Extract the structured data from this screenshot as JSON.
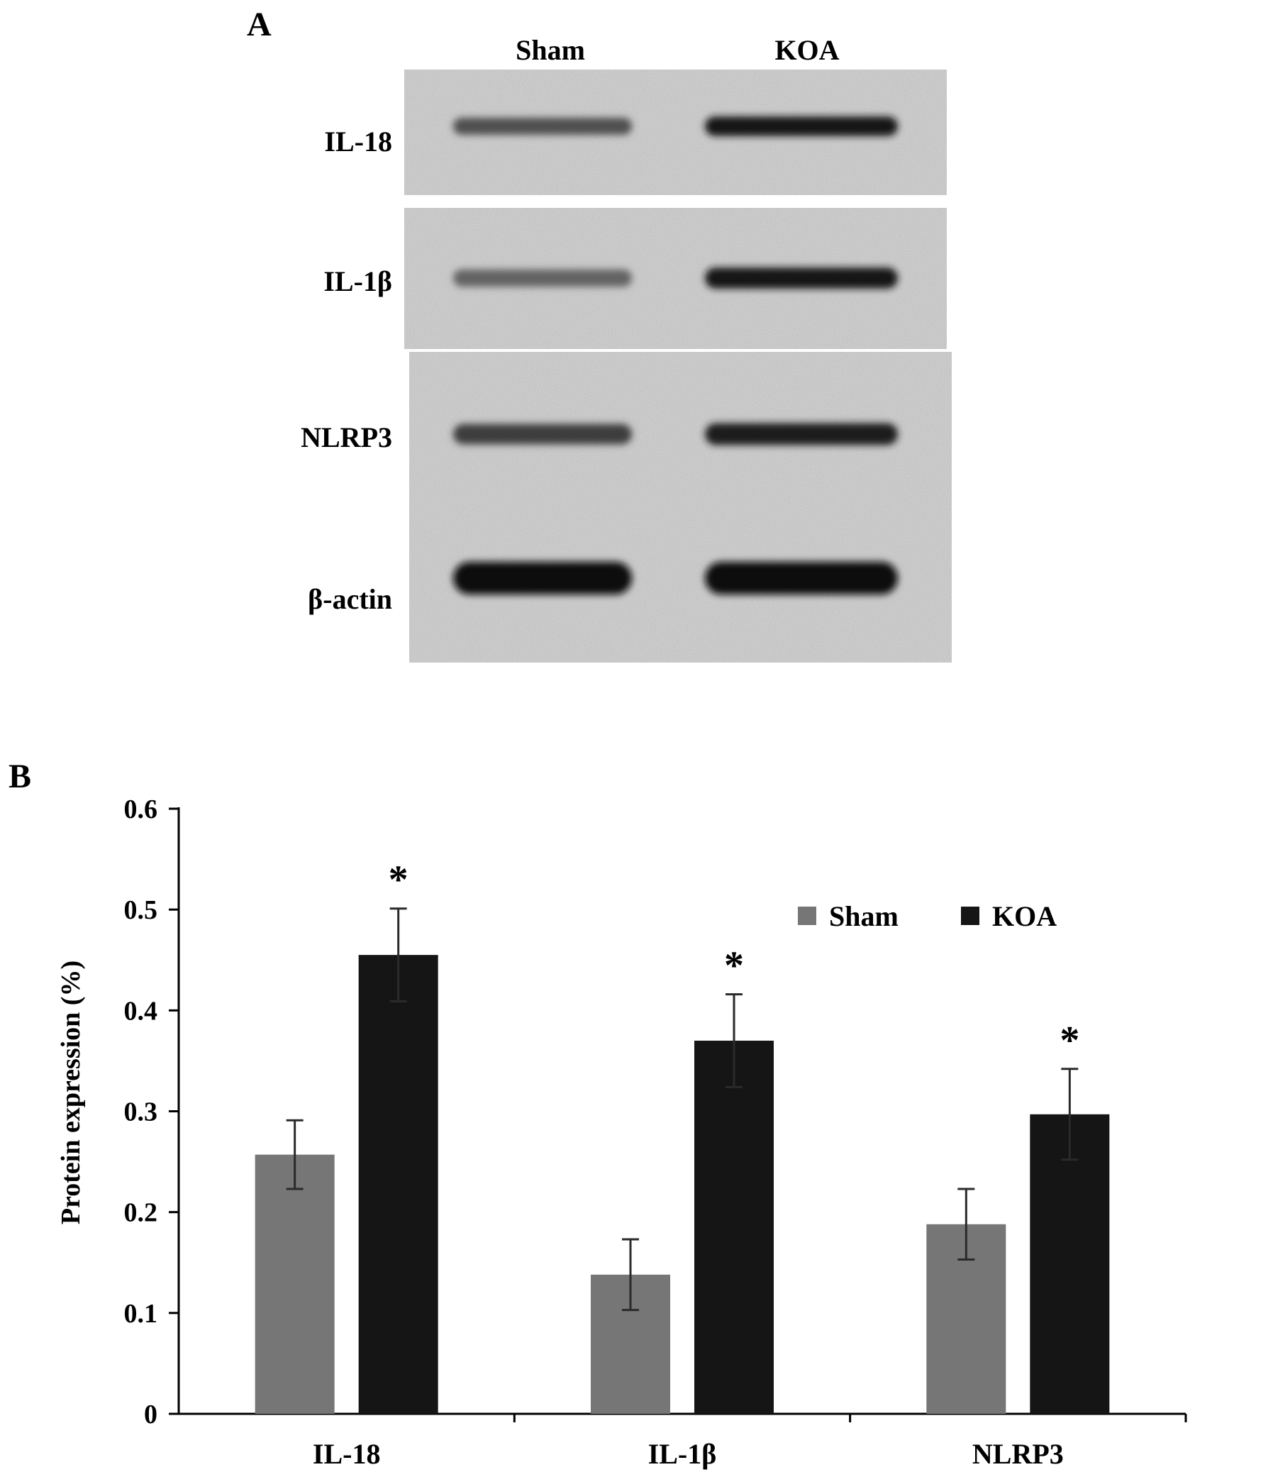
{
  "panel_a": {
    "panel_label": "A",
    "lanes": [
      "Sham",
      "KOA"
    ],
    "blots": [
      {
        "label": "IL-18",
        "band_intensity": [
          0.65,
          0.95
        ]
      },
      {
        "label": "IL-1β",
        "band_intensity": [
          0.55,
          0.95
        ]
      },
      {
        "label": "NLRP3",
        "band_intensity": [
          0.75,
          0.9
        ]
      },
      {
        "label": "β-actin",
        "band_intensity": [
          1.0,
          1.0
        ]
      }
    ]
  },
  "chart_data": {
    "type": "bar",
    "panel_label": "B",
    "title": "",
    "xlabel": "",
    "ylabel": "Protein expression (%)",
    "categories": [
      "IL-18",
      "IL-1β",
      "NLRP3"
    ],
    "ylim": [
      0,
      0.6
    ],
    "yticks": [
      "0",
      "0.1",
      "0.2",
      "0.3",
      "0.4",
      "0.5",
      "0.6"
    ],
    "grid": false,
    "legend_position": "top-right",
    "series": [
      {
        "name": "Sham",
        "color": "#767676",
        "values": [
          0.257,
          0.138,
          0.188
        ],
        "errors": [
          0.034,
          0.035,
          0.035
        ]
      },
      {
        "name": "KOA",
        "color": "#151515",
        "values": [
          0.455,
          0.37,
          0.297
        ],
        "errors": [
          0.046,
          0.046,
          0.045
        ]
      }
    ],
    "significance_marker": "*",
    "significant_series": "KOA"
  }
}
